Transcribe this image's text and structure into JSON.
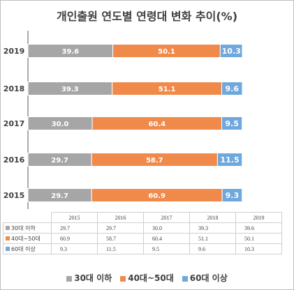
{
  "chart_data": {
    "type": "bar",
    "orientation": "horizontal",
    "stacked": true,
    "title": "개인출원 연도별 연령대 변화 추이(%)",
    "categories": [
      "2019",
      "2018",
      "2017",
      "2016",
      "2015"
    ],
    "series": [
      {
        "name": "30대 이하",
        "color": "#a6a6a6",
        "values": [
          39.6,
          39.3,
          30.0,
          29.7,
          29.7
        ]
      },
      {
        "name": "40대~50대",
        "color": "#f08a4b",
        "values": [
          50.1,
          51.1,
          60.4,
          58.7,
          60.9
        ]
      },
      {
        "name": "60대 이상",
        "color": "#6fa8dc",
        "values": [
          10.3,
          9.6,
          9.5,
          11.5,
          9.3
        ]
      }
    ],
    "xlim": [
      0,
      100
    ],
    "grid": false,
    "legend": "bottom",
    "table": {
      "years": [
        "2015",
        "2016",
        "2017",
        "2018",
        "2019"
      ],
      "rows": [
        {
          "label": "30대 이하",
          "values": [
            "29.7",
            "29.7",
            "30.0",
            "39.3",
            "39.6"
          ]
        },
        {
          "label": "40대~50대",
          "values": [
            "60.9",
            "58.7",
            "60.4",
            "51.1",
            "50.1"
          ]
        },
        {
          "label": "60대 이상",
          "values": [
            "9.3",
            "11.5",
            "9.5",
            "9.6",
            "10.3"
          ]
        }
      ]
    }
  }
}
